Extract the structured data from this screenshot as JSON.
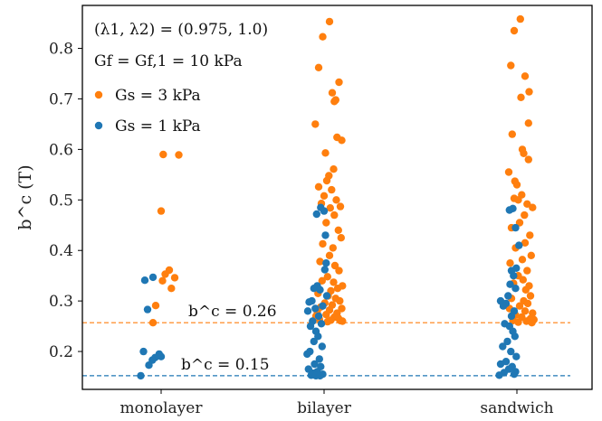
{
  "chart_data": {
    "type": "scatter",
    "title": "",
    "xlabel": "",
    "ylabel": "b^c (T)",
    "categories": [
      "monolayer",
      "bilayer",
      "sandwich"
    ],
    "ylim": [
      0.125,
      0.885
    ],
    "yticks": [
      0.2,
      0.3,
      0.4,
      0.5,
      0.6,
      0.7,
      0.8
    ],
    "ytick_labels": [
      "0.2",
      "0.3",
      "0.4",
      "0.5",
      "0.6",
      "0.7",
      "0.8"
    ],
    "grid": false,
    "legend": {
      "placement": "top-left",
      "lines": [
        "(λ1, λ2) = (0.975, 1.0)",
        "Gf = Gf,1 = 10 kPa"
      ],
      "entries": [
        "Gs = 3 kPa",
        "Gs = 1 kPa"
      ]
    },
    "annotations": [
      {
        "text": "b^c = 0.26",
        "y": 0.257,
        "color": "#ff7f0e"
      },
      {
        "text": "b^c = 0.15",
        "y": 0.152,
        "color": "#1f77b4"
      }
    ],
    "series": [
      {
        "name": "Gs = 3 kPa",
        "color": "#ff7f0e",
        "points": [
          [
            "monolayer",
            0.59,
            0.03
          ],
          [
            "monolayer",
            0.589,
            0.26
          ],
          [
            "monolayer",
            0.478,
            0.0
          ],
          [
            "monolayer",
            0.361,
            0.12
          ],
          [
            "monolayer",
            0.353,
            0.06
          ],
          [
            "monolayer",
            0.346,
            0.2
          ],
          [
            "monolayer",
            0.34,
            0.02
          ],
          [
            "monolayer",
            0.325,
            0.15
          ],
          [
            "monolayer",
            0.291,
            -0.08
          ],
          [
            "monolayer",
            0.257,
            -0.12
          ],
          [
            "bilayer",
            0.853,
            0.08
          ],
          [
            "bilayer",
            0.823,
            -0.02
          ],
          [
            "bilayer",
            0.762,
            -0.08
          ],
          [
            "bilayer",
            0.733,
            0.22
          ],
          [
            "bilayer",
            0.712,
            0.12
          ],
          [
            "bilayer",
            0.698,
            0.17
          ],
          [
            "bilayer",
            0.695,
            0.15
          ],
          [
            "bilayer",
            0.65,
            -0.13
          ],
          [
            "bilayer",
            0.624,
            0.19
          ],
          [
            "bilayer",
            0.618,
            0.26
          ],
          [
            "bilayer",
            0.593,
            0.02
          ],
          [
            "bilayer",
            0.561,
            0.14
          ],
          [
            "bilayer",
            0.548,
            0.07
          ],
          [
            "bilayer",
            0.538,
            0.04
          ],
          [
            "bilayer",
            0.526,
            -0.08
          ],
          [
            "bilayer",
            0.52,
            0.11
          ],
          [
            "bilayer",
            0.508,
            0.0
          ],
          [
            "bilayer",
            0.5,
            0.18
          ],
          [
            "bilayer",
            0.493,
            -0.04
          ],
          [
            "bilayer",
            0.487,
            0.24
          ],
          [
            "bilayer",
            0.484,
            0.09
          ],
          [
            "bilayer",
            0.47,
            0.15
          ],
          [
            "bilayer",
            0.455,
            0.03
          ],
          [
            "bilayer",
            0.44,
            0.21
          ],
          [
            "bilayer",
            0.425,
            0.25
          ],
          [
            "bilayer",
            0.413,
            -0.02
          ],
          [
            "bilayer",
            0.405,
            0.13
          ],
          [
            "bilayer",
            0.39,
            0.08
          ],
          [
            "bilayer",
            0.378,
            -0.06
          ],
          [
            "bilayer",
            0.37,
            0.16
          ],
          [
            "bilayer",
            0.36,
            0.22
          ],
          [
            "bilayer",
            0.348,
            0.05
          ],
          [
            "bilayer",
            0.34,
            -0.03
          ],
          [
            "bilayer",
            0.337,
            0.14
          ],
          [
            "bilayer",
            0.33,
            0.27
          ],
          [
            "bilayer",
            0.325,
            0.2
          ],
          [
            "bilayer",
            0.32,
            0.1
          ],
          [
            "bilayer",
            0.315,
            -0.09
          ],
          [
            "bilayer",
            0.31,
            0.06
          ],
          [
            "bilayer",
            0.305,
            0.17
          ],
          [
            "bilayer",
            0.3,
            0.23
          ],
          [
            "bilayer",
            0.296,
            0.01
          ],
          [
            "bilayer",
            0.292,
            0.12
          ],
          [
            "bilayer",
            0.288,
            -0.05
          ],
          [
            "bilayer",
            0.285,
            0.26
          ],
          [
            "bilayer",
            0.282,
            0.08
          ],
          [
            "bilayer",
            0.279,
            -0.1
          ],
          [
            "bilayer",
            0.276,
            0.19
          ],
          [
            "bilayer",
            0.273,
            0.03
          ],
          [
            "bilayer",
            0.27,
            -0.12
          ],
          [
            "bilayer",
            0.268,
            0.15
          ],
          [
            "bilayer",
            0.266,
            0.21
          ],
          [
            "bilayer",
            0.264,
            -0.07
          ],
          [
            "bilayer",
            0.262,
            0.1
          ],
          [
            "bilayer",
            0.261,
            0.24
          ],
          [
            "bilayer",
            0.26,
            0.27
          ],
          [
            "bilayer",
            0.259,
            0.05
          ],
          [
            "sandwich",
            0.858,
            0.05
          ],
          [
            "sandwich",
            0.835,
            -0.04
          ],
          [
            "sandwich",
            0.766,
            -0.09
          ],
          [
            "sandwich",
            0.745,
            0.12
          ],
          [
            "sandwich",
            0.714,
            0.18
          ],
          [
            "sandwich",
            0.703,
            0.06
          ],
          [
            "sandwich",
            0.652,
            0.17
          ],
          [
            "sandwich",
            0.63,
            -0.07
          ],
          [
            "sandwich",
            0.6,
            0.08
          ],
          [
            "sandwich",
            0.592,
            0.1
          ],
          [
            "sandwich",
            0.58,
            0.17
          ],
          [
            "sandwich",
            0.555,
            -0.12
          ],
          [
            "sandwich",
            0.537,
            -0.03
          ],
          [
            "sandwich",
            0.53,
            0.0
          ],
          [
            "sandwich",
            0.51,
            0.07
          ],
          [
            "sandwich",
            0.503,
            -0.04
          ],
          [
            "sandwich",
            0.5,
            0.02
          ],
          [
            "sandwich",
            0.492,
            0.15
          ],
          [
            "sandwich",
            0.485,
            0.23
          ],
          [
            "sandwich",
            0.47,
            0.11
          ],
          [
            "sandwich",
            0.455,
            0.04
          ],
          [
            "sandwich",
            0.445,
            -0.08
          ],
          [
            "sandwich",
            0.43,
            0.19
          ],
          [
            "sandwich",
            0.415,
            0.12
          ],
          [
            "sandwich",
            0.405,
            -0.02
          ],
          [
            "sandwich",
            0.39,
            0.21
          ],
          [
            "sandwich",
            0.382,
            0.08
          ],
          [
            "sandwich",
            0.375,
            -0.1
          ],
          [
            "sandwich",
            0.36,
            0.15
          ],
          [
            "sandwich",
            0.35,
            0.02
          ],
          [
            "sandwich",
            0.342,
            0.09
          ],
          [
            "sandwich",
            0.335,
            -0.05
          ],
          [
            "sandwich",
            0.33,
            0.18
          ],
          [
            "sandwich",
            0.322,
            0.13
          ],
          [
            "sandwich",
            0.31,
            0.2
          ],
          [
            "sandwich",
            0.305,
            -0.08
          ],
          [
            "sandwich",
            0.3,
            0.1
          ],
          [
            "sandwich",
            0.295,
            0.16
          ],
          [
            "sandwich",
            0.29,
            0.04
          ],
          [
            "sandwich",
            0.285,
            -0.11
          ],
          [
            "sandwich",
            0.28,
            0.12
          ],
          [
            "sandwich",
            0.276,
            0.23
          ],
          [
            "sandwich",
            0.272,
            -0.02
          ],
          [
            "sandwich",
            0.268,
            0.07
          ],
          [
            "sandwich",
            0.265,
            0.2
          ],
          [
            "sandwich",
            0.263,
            0.25
          ],
          [
            "sandwich",
            0.261,
            -0.06
          ],
          [
            "sandwich",
            0.26,
            0.14
          ],
          [
            "sandwich",
            0.258,
            0.02
          ],
          [
            "sandwich",
            0.257,
            0.22
          ]
        ]
      },
      {
        "name": "Gs = 1 kPa",
        "color": "#1f77b4",
        "points": [
          [
            "monolayer",
            0.347,
            -0.12
          ],
          [
            "monolayer",
            0.341,
            -0.24
          ],
          [
            "monolayer",
            0.283,
            -0.2
          ],
          [
            "monolayer",
            0.2,
            -0.26
          ],
          [
            "monolayer",
            0.195,
            -0.03
          ],
          [
            "monolayer",
            0.19,
            0.0
          ],
          [
            "monolayer",
            0.188,
            -0.09
          ],
          [
            "monolayer",
            0.183,
            -0.13
          ],
          [
            "monolayer",
            0.173,
            -0.18
          ],
          [
            "monolayer",
            0.152,
            -0.3
          ],
          [
            "bilayer",
            0.485,
            -0.05
          ],
          [
            "bilayer",
            0.478,
            0.0
          ],
          [
            "bilayer",
            0.472,
            -0.11
          ],
          [
            "bilayer",
            0.43,
            0.02
          ],
          [
            "bilayer",
            0.375,
            0.03
          ],
          [
            "bilayer",
            0.362,
            0.01
          ],
          [
            "bilayer",
            0.33,
            -0.1
          ],
          [
            "bilayer",
            0.325,
            -0.15
          ],
          [
            "bilayer",
            0.322,
            -0.06
          ],
          [
            "bilayer",
            0.31,
            0.04
          ],
          [
            "bilayer",
            0.3,
            -0.18
          ],
          [
            "bilayer",
            0.298,
            -0.22
          ],
          [
            "bilayer",
            0.29,
            -0.02
          ],
          [
            "bilayer",
            0.285,
            -0.13
          ],
          [
            "bilayer",
            0.28,
            -0.24
          ],
          [
            "bilayer",
            0.27,
            -0.08
          ],
          [
            "bilayer",
            0.26,
            -0.17
          ],
          [
            "bilayer",
            0.255,
            -0.04
          ],
          [
            "bilayer",
            0.25,
            -0.2
          ],
          [
            "bilayer",
            0.24,
            -0.12
          ],
          [
            "bilayer",
            0.23,
            -0.09
          ],
          [
            "bilayer",
            0.22,
            -0.15
          ],
          [
            "bilayer",
            0.21,
            -0.03
          ],
          [
            "bilayer",
            0.2,
            -0.21
          ],
          [
            "bilayer",
            0.195,
            -0.25
          ],
          [
            "bilayer",
            0.185,
            -0.07
          ],
          [
            "bilayer",
            0.175,
            -0.14
          ],
          [
            "bilayer",
            0.17,
            -0.05
          ],
          [
            "bilayer",
            0.165,
            -0.23
          ],
          [
            "bilayer",
            0.16,
            -0.1
          ],
          [
            "bilayer",
            0.157,
            -0.17
          ],
          [
            "bilayer",
            0.155,
            -0.02
          ],
          [
            "bilayer",
            0.153,
            -0.19
          ],
          [
            "bilayer",
            0.152,
            -0.12
          ],
          [
            "bilayer",
            0.152,
            -0.06
          ],
          [
            "sandwich",
            0.48,
            -0.11
          ],
          [
            "sandwich",
            0.483,
            -0.06
          ],
          [
            "sandwich",
            0.445,
            -0.02
          ],
          [
            "sandwich",
            0.41,
            0.03
          ],
          [
            "sandwich",
            0.365,
            -0.01
          ],
          [
            "sandwich",
            0.36,
            -0.08
          ],
          [
            "sandwich",
            0.35,
            -0.05
          ],
          [
            "sandwich",
            0.333,
            -0.1
          ],
          [
            "sandwich",
            0.325,
            -0.02
          ],
          [
            "sandwich",
            0.31,
            -0.13
          ],
          [
            "sandwich",
            0.3,
            -0.24
          ],
          [
            "sandwich",
            0.295,
            -0.16
          ],
          [
            "sandwich",
            0.29,
            -0.2
          ],
          [
            "sandwich",
            0.28,
            -0.04
          ],
          [
            "sandwich",
            0.27,
            -0.08
          ],
          [
            "sandwich",
            0.255,
            -0.18
          ],
          [
            "sandwich",
            0.25,
            -0.11
          ],
          [
            "sandwich",
            0.24,
            -0.06
          ],
          [
            "sandwich",
            0.23,
            -0.03
          ],
          [
            "sandwich",
            0.22,
            -0.14
          ],
          [
            "sandwich",
            0.21,
            -0.21
          ],
          [
            "sandwich",
            0.2,
            -0.09
          ],
          [
            "sandwich",
            0.19,
            -0.01
          ],
          [
            "sandwich",
            0.18,
            -0.16
          ],
          [
            "sandwich",
            0.175,
            -0.24
          ],
          [
            "sandwich",
            0.17,
            -0.07
          ],
          [
            "sandwich",
            0.165,
            -0.12
          ],
          [
            "sandwich",
            0.16,
            -0.02
          ],
          [
            "sandwich",
            0.158,
            -0.19
          ],
          [
            "sandwich",
            0.155,
            -0.04
          ],
          [
            "sandwich",
            0.153,
            -0.26
          ]
        ]
      }
    ]
  }
}
